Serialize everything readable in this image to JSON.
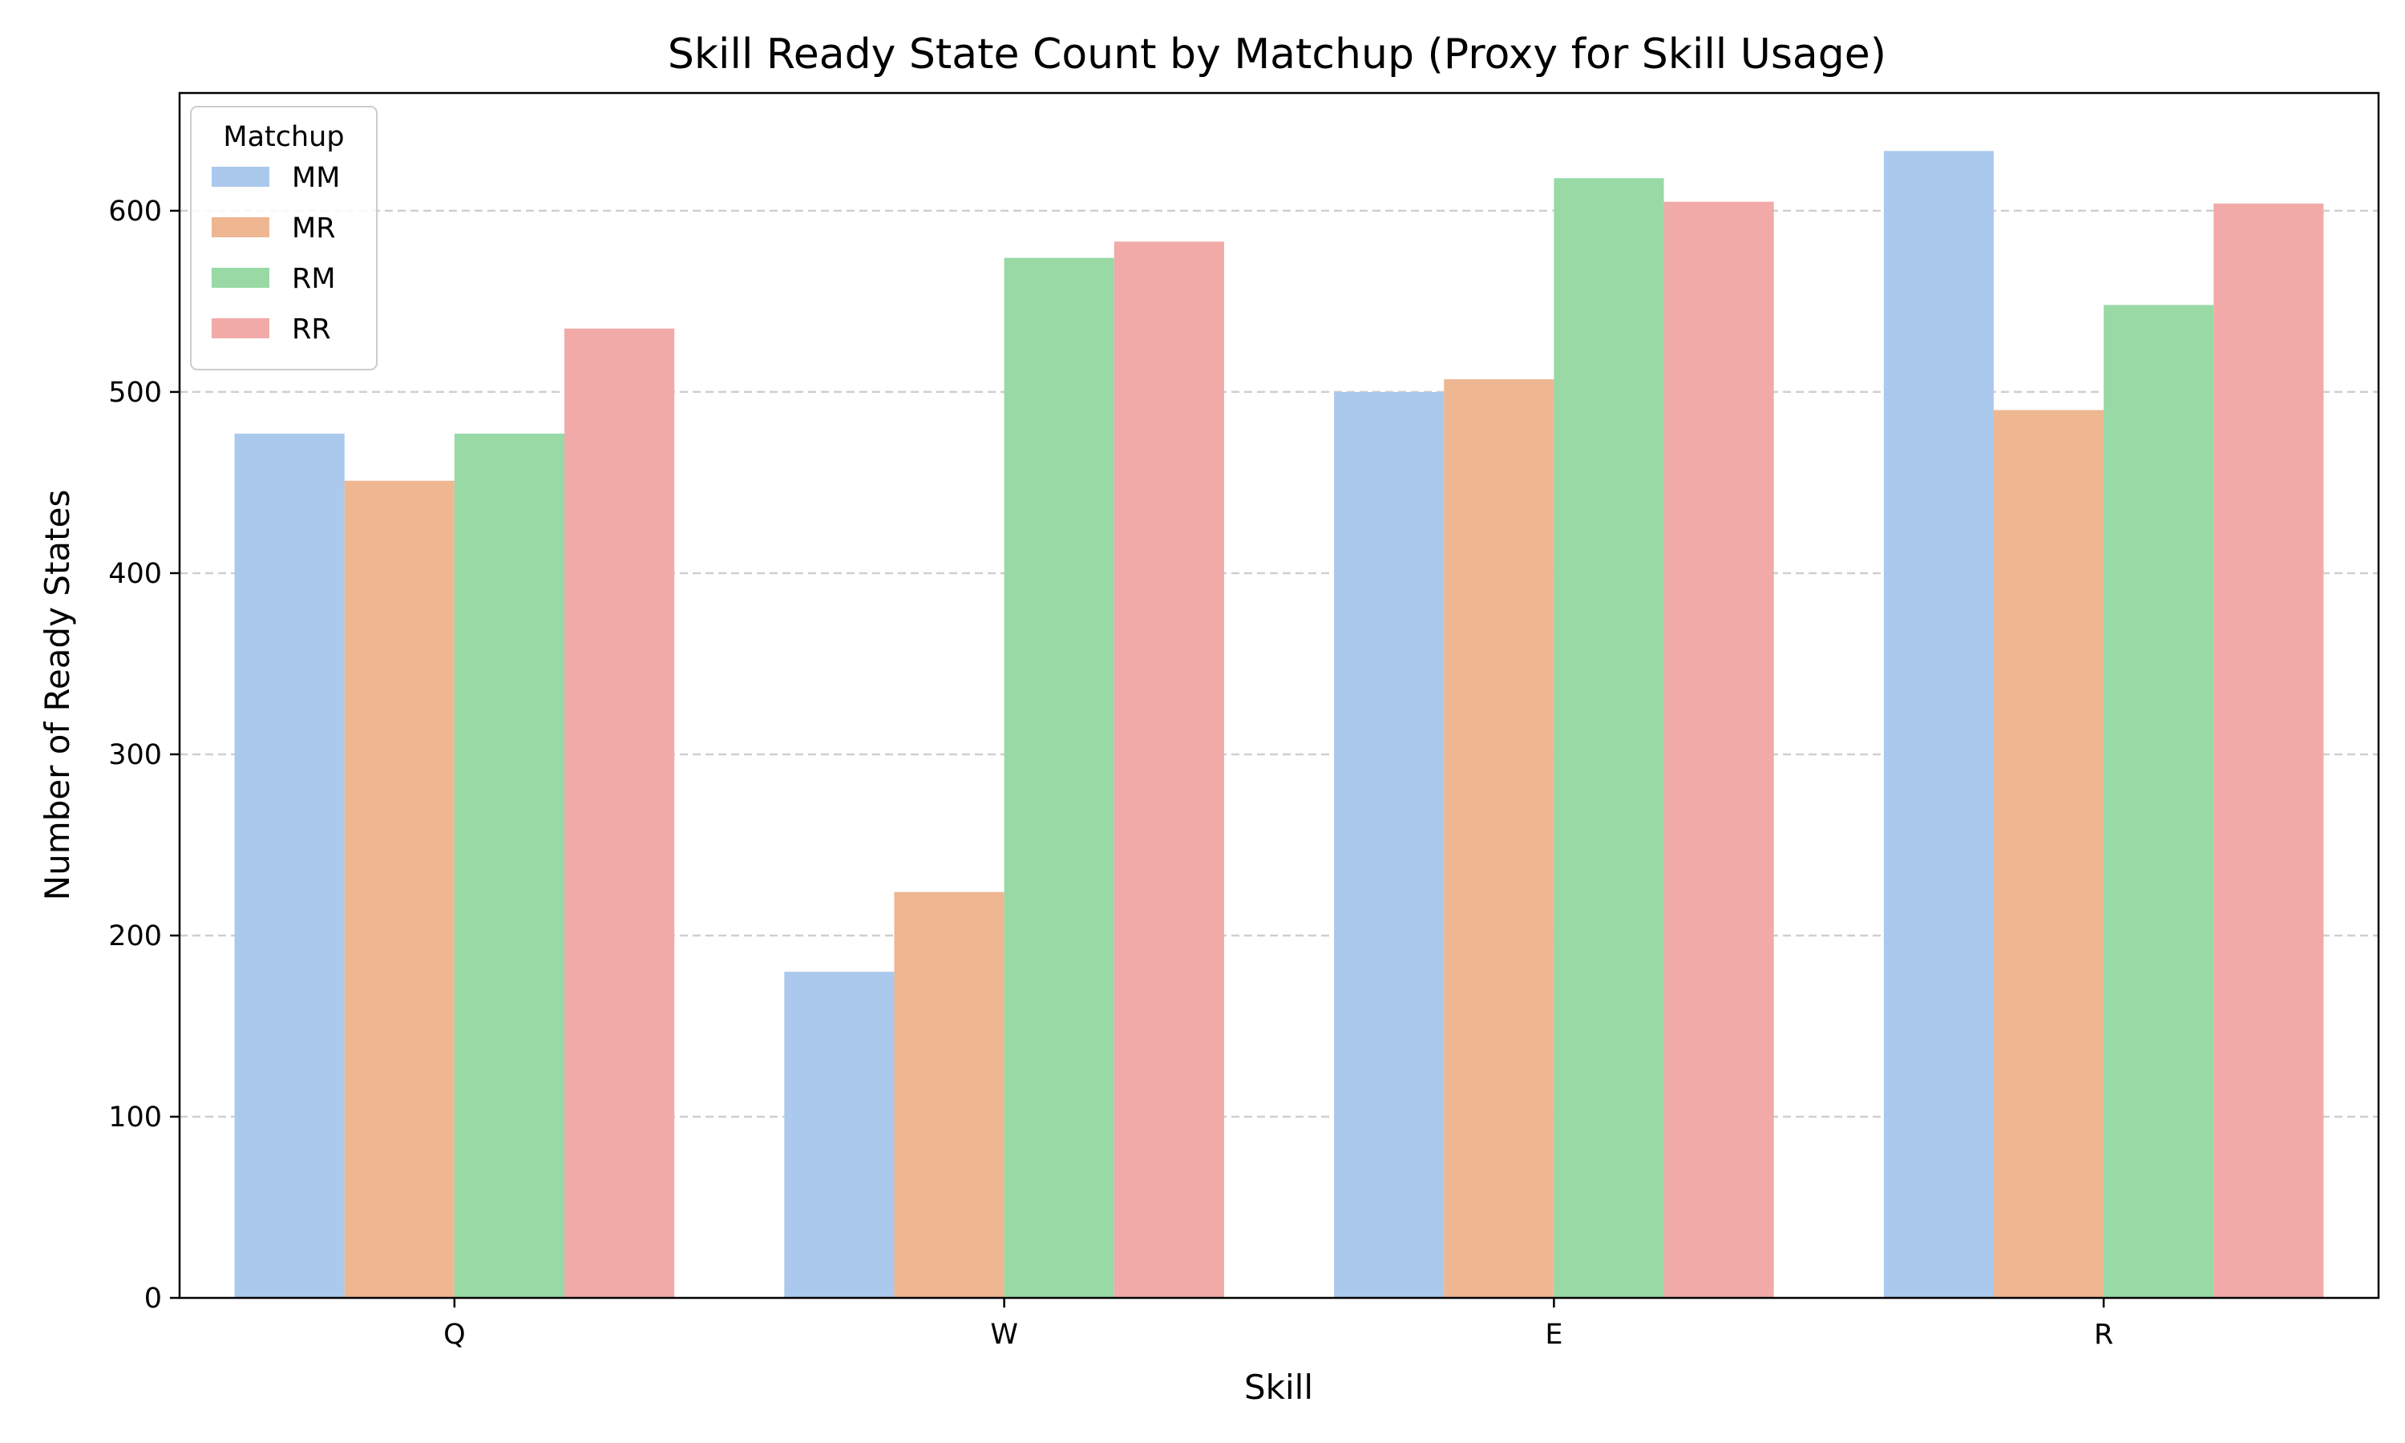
{
  "chart_data": {
    "type": "bar",
    "title": "Skill Ready State Count by Matchup (Proxy for Skill Usage)",
    "xlabel": "Skill",
    "ylabel": "Number of Ready States",
    "categories": [
      "Q",
      "W",
      "E",
      "R"
    ],
    "ylim": [
      0,
      665
    ],
    "yticks": [
      0,
      100,
      200,
      300,
      400,
      500,
      600
    ],
    "grid": "y-dashed",
    "legend": {
      "title": "Matchup",
      "placement": "top-left"
    },
    "series": [
      {
        "name": "MM",
        "color": "#abc9ec",
        "values": [
          477,
          180,
          500,
          633
        ]
      },
      {
        "name": "MR",
        "color": "#efb692",
        "values": [
          451,
          224,
          507,
          490
        ]
      },
      {
        "name": "RM",
        "color": "#98d9a6",
        "values": [
          477,
          574,
          618,
          548
        ]
      },
      {
        "name": "RR",
        "color": "#f1aaa8",
        "values": [
          535,
          583,
          605,
          604
        ]
      }
    ]
  }
}
